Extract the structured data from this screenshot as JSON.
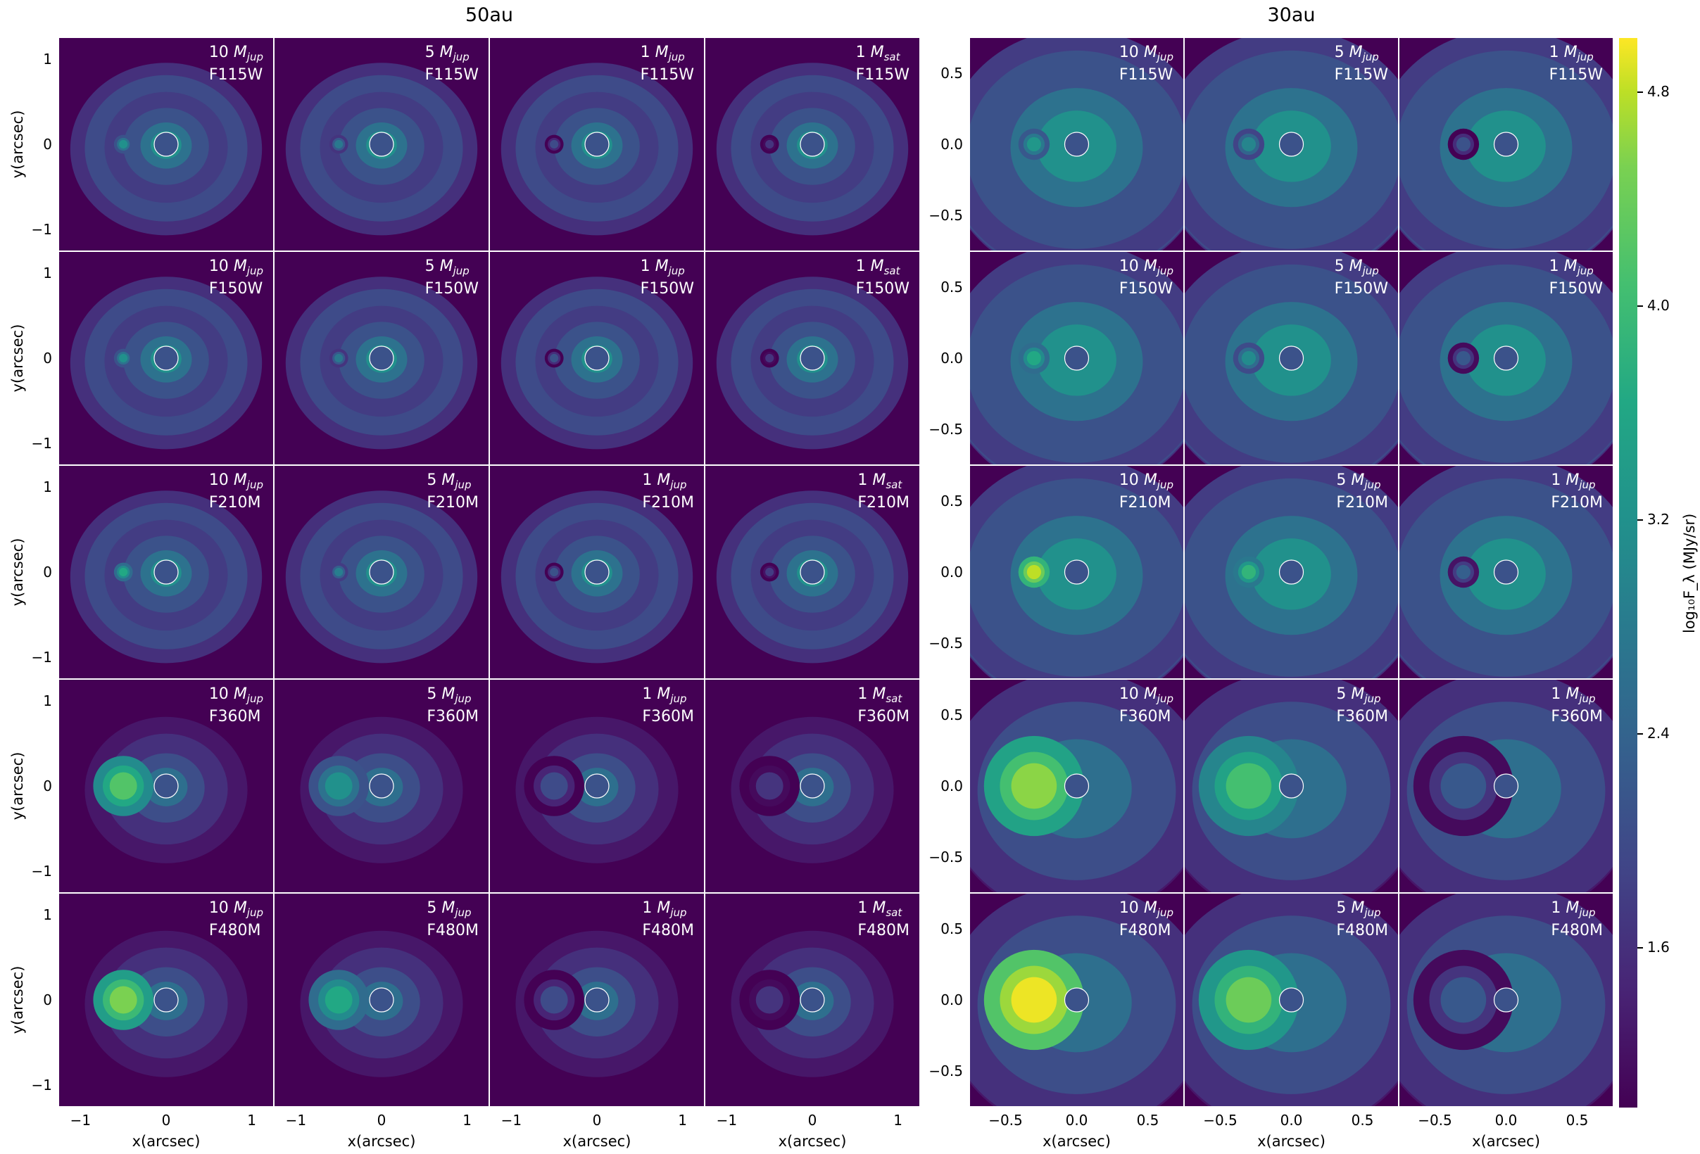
{
  "figure": {
    "groups": [
      {
        "title": "50au",
        "columns": [
          {
            "mass": "10",
            "unit_sub": "jup"
          },
          {
            "mass": "5",
            "unit_sub": "jup"
          },
          {
            "mass": "1",
            "unit_sub": "jup"
          },
          {
            "mass": "1",
            "unit_sub": "sat"
          }
        ],
        "x_ticks": [
          "−1",
          "0",
          "1"
        ],
        "y_ticks": [
          "1",
          "0",
          "−1"
        ],
        "xlabel": "x(arcsec)",
        "ylabel": "y(arcsec)"
      },
      {
        "title": "30au",
        "columns": [
          {
            "mass": "10",
            "unit_sub": "jup"
          },
          {
            "mass": "5",
            "unit_sub": "jup"
          },
          {
            "mass": "1",
            "unit_sub": "jup"
          }
        ],
        "x_ticks": [
          "−0.5",
          "0.0",
          "0.5"
        ],
        "y_ticks": [
          "0.5",
          "0.0",
          "−0.5"
        ],
        "xlabel": "x(arcsec)",
        "ylabel": ""
      }
    ],
    "filters": [
      "F115W",
      "F150W",
      "F210M",
      "F360M",
      "F480M"
    ],
    "mass_symbol": "M",
    "colorbar": {
      "label": "log₁₀F_λ (MJy/sr)",
      "ticks": [
        "4.8",
        "4.0",
        "3.2",
        "2.4",
        "1.6"
      ],
      "colormap": [
        "#440154",
        "#482475",
        "#414487",
        "#355f8d",
        "#2a788e",
        "#21918c",
        "#22a884",
        "#44bf70",
        "#7ad151",
        "#bddf26",
        "#fde725"
      ]
    }
  },
  "chart_data": {
    "type": "heatmap",
    "description_visible": "Grid of simulated images: rows are filters, columns are planet masses; left block at 50au, right block at 30au",
    "rows": [
      "F115W",
      "F150W",
      "F210M",
      "F360M",
      "F480M"
    ],
    "groups": [
      "50au",
      "30au"
    ],
    "columns_50au": [
      "10 M_jup",
      "5 M_jup",
      "1 M_jup",
      "1 M_sat"
    ],
    "columns_30au": [
      "10 M_jup",
      "5 M_jup",
      "1 M_jup"
    ],
    "xlabel": "x(arcsec)",
    "ylabel": "y(arcsec)",
    "xlim_50au": [
      -1.25,
      1.25
    ],
    "ylim_50au": [
      -1.25,
      1.25
    ],
    "xlim_30au": [
      -0.75,
      0.75
    ],
    "ylim_30au": [
      -0.75,
      0.75
    ],
    "colorbar_label": "log10 F_λ (MJy/sr)",
    "colorbar_ticks": [
      4.8,
      4.0,
      3.2,
      2.4,
      1.6
    ],
    "colorbar_range": [
      1.0,
      5.0
    ],
    "planet_x_50au": -0.5,
    "planet_x_30au": -0.3,
    "planet_peak_value": {
      "50au": [
        [
          3.0,
          2.6,
          1.9,
          1.6
        ],
        [
          3.0,
          2.6,
          2.0,
          1.6
        ],
        [
          3.4,
          2.7,
          2.0,
          1.7
        ],
        [
          3.9,
          3.0,
          1.9,
          1.6
        ],
        [
          4.2,
          3.4,
          1.9,
          1.6
        ]
      ],
      "30au": [
        [
          3.1,
          2.8,
          2.0
        ],
        [
          3.4,
          2.9,
          2.1
        ],
        [
          4.6,
          3.6,
          2.2
        ],
        [
          4.3,
          3.8,
          2.1
        ],
        [
          4.9,
          4.1,
          2.1
        ]
      ]
    }
  }
}
